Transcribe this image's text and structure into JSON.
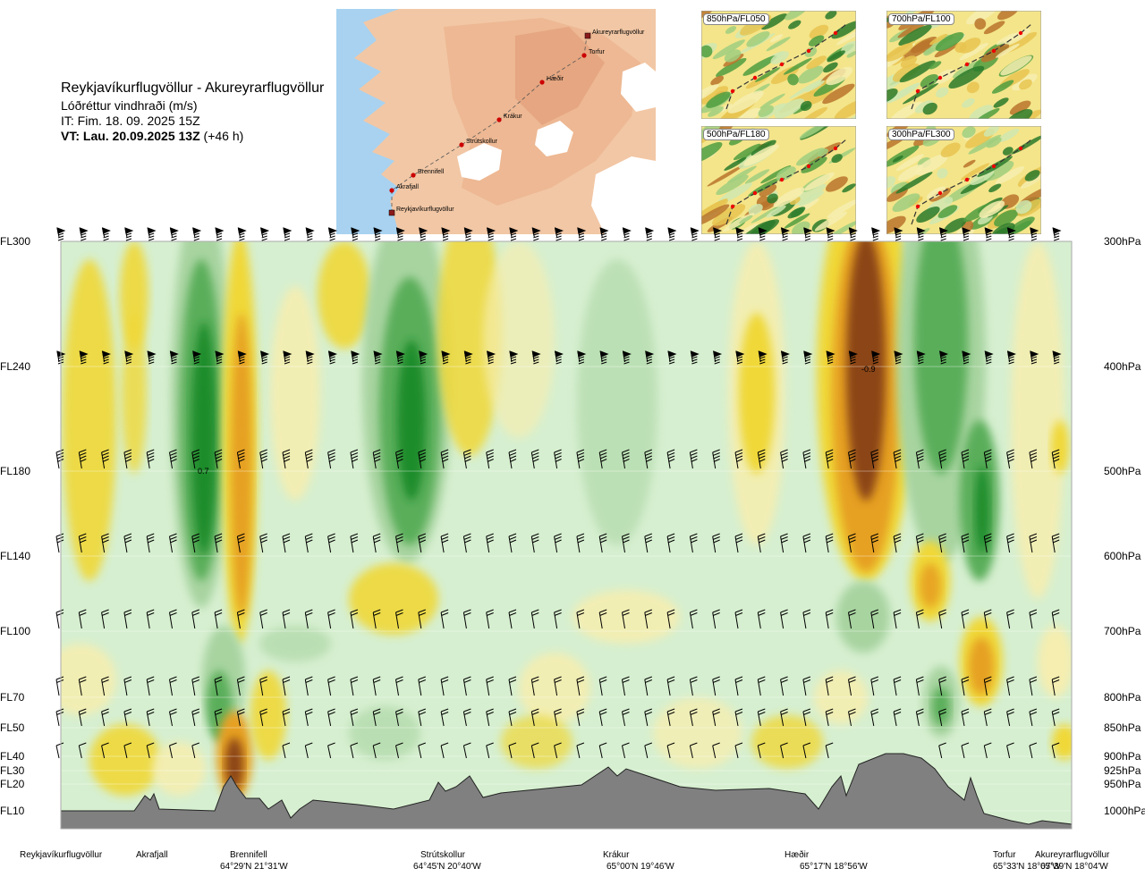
{
  "header": {
    "title": "Reykjavíkurflugvöllur - Akureyrarflugvöllur",
    "subtitle": "Lóðréttur vindhraði (m/s)",
    "issue_time": "IT: Fim. 18. 09. 2025 15Z",
    "valid_prefix": "VT: Lau. 20.09.2025 13Z",
    "valid_suffix": "(+46 h)"
  },
  "insets": [
    {
      "label": "850hPa/FL050"
    },
    {
      "label": "700hPa/FL100"
    },
    {
      "label": "500hPa/FL180"
    },
    {
      "label": "300hPa/FL300"
    }
  ],
  "map": {
    "waypoints": [
      "Akureyrarflugvöllur",
      "Torfur",
      "Hæðir",
      "Krákur",
      "Strútskollur",
      "Brennifell",
      "Akrafjall",
      "Reykjavíkurflugvöllur"
    ],
    "colors": {
      "sea": "#a8d2f0",
      "land": "#f2c7a5",
      "glacier": "#ffffff",
      "route": "#cc0000"
    }
  },
  "chart_data": {
    "type": "heatmap",
    "variable": "Lóðréttur vindhraði (m/s)",
    "y_levels": [
      {
        "fl": "FL300",
        "hpa": "300hPa"
      },
      {
        "fl": "FL240",
        "hpa": "400hPa"
      },
      {
        "fl": "FL180",
        "hpa": "500hPa"
      },
      {
        "fl": "FL140",
        "hpa": "600hPa"
      },
      {
        "fl": "FL100",
        "hpa": "700hPa"
      },
      {
        "fl": "FL70",
        "hpa": "800hPa"
      },
      {
        "fl": "FL50",
        "hpa": "850hPa"
      },
      {
        "fl": "FL40",
        "hpa": "900hPa"
      },
      {
        "fl": "FL30",
        "hpa": "925hPa"
      },
      {
        "fl": "FL20",
        "hpa": "950hPa"
      },
      {
        "fl": "FL10",
        "hpa": "1000hPa"
      }
    ],
    "stations": [
      {
        "name": "Reykjavíkurflugvöllur",
        "coord": ""
      },
      {
        "name": "Akrafjall",
        "coord": ""
      },
      {
        "name": "Brennifell",
        "coord": "64°29'N 21°31'W"
      },
      {
        "name": "Strútskollur",
        "coord": "64°45'N 20°40'W"
      },
      {
        "name": "Krákur",
        "coord": "65°00'N 19°46'W"
      },
      {
        "name": "Hæðir",
        "coord": "65°17'N 18°56'W"
      },
      {
        "name": "Torfur",
        "coord": "65°33'N 18°07'W"
      },
      {
        "name": "Akureyrarflugvöllur",
        "coord": "65°39'N 18°04'W"
      }
    ],
    "annotations": [
      "0.7",
      "-0.9"
    ],
    "colors": {
      "strong_positive": "#8b4513",
      "positive": "#e6a020",
      "weak_positive": "#f0d838",
      "near_zero_pos": "#f5eeb0",
      "near_zero_neg": "#d6efd0",
      "weak_negative": "#a8d4a0",
      "negative": "#5aae5a",
      "strong_negative": "#1e8c2a",
      "terrain": "#808080"
    }
  }
}
